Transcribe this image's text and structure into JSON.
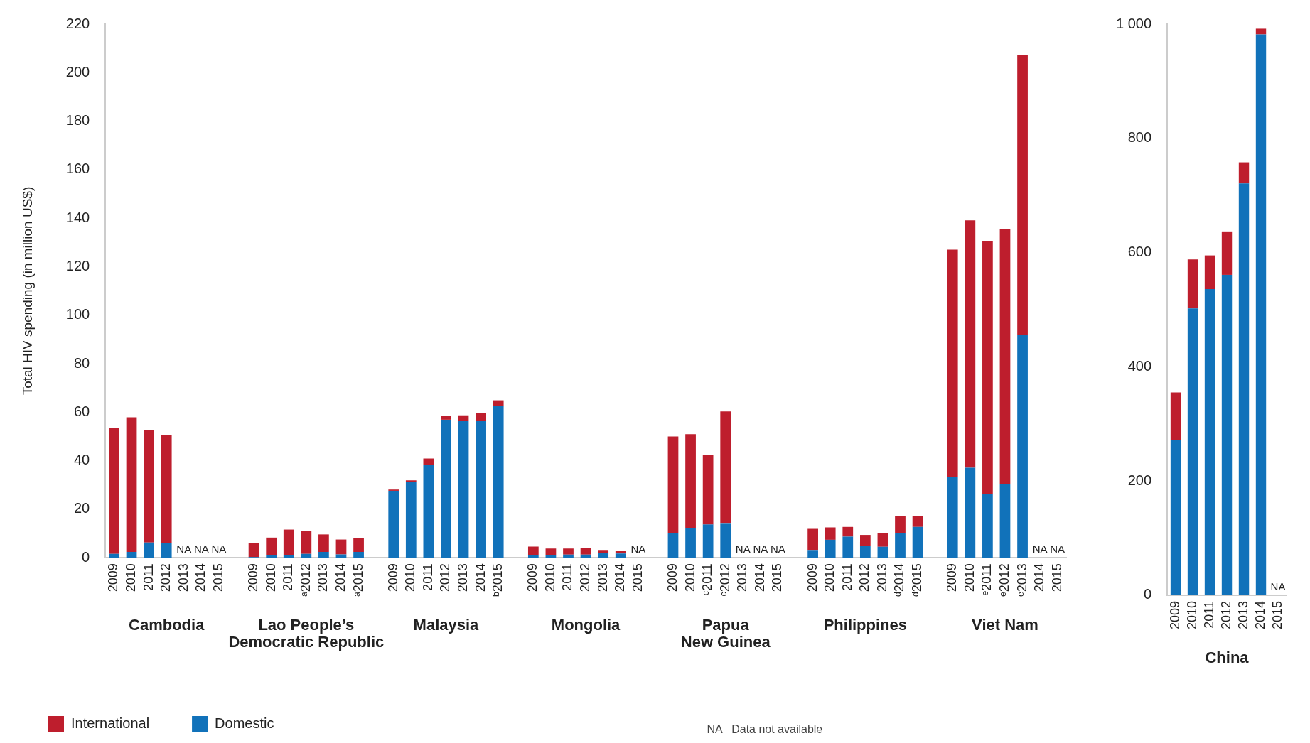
{
  "chart_data": [
    {
      "type": "bar",
      "ylabel": "Total HIV spending (in million US$)",
      "stacked": true,
      "grid": false,
      "legend": "bottom left",
      "categories": [
        "2009",
        "2010",
        "2011",
        "2012",
        "2013",
        "2014",
        "2015",
        null,
        "2009",
        "2010",
        "2011",
        "ᵃ2012",
        "2013",
        "2014",
        "ᵃ2015",
        null,
        "2009",
        "2010",
        "2011",
        "2012",
        "2013",
        "2014",
        "ᵇ2015",
        null,
        "2009",
        "2010",
        "2011",
        "2012",
        "2013",
        "2014",
        "2015",
        null,
        "2009",
        "2010",
        "ᶜ2011",
        "ᶜ2012",
        "2013",
        "2014",
        "2015",
        null,
        "2009",
        "2010",
        "2011",
        "2012",
        "2013",
        "ᵈ2014",
        "ᵈ2015",
        null,
        "2009",
        "2010",
        "ᵉ2011",
        "ᵉ2012",
        "ᵉ2013",
        "2014",
        "2015"
      ],
      "ylim": [
        0,
        220
      ],
      "yticks": [
        0,
        20,
        40,
        60,
        80,
        100,
        120,
        140,
        160,
        180,
        200,
        220
      ],
      "series": [
        {
          "name": "Domestic",
          "color": "#1172ba",
          "values": [
            1.6,
            2.4,
            6.3,
            5.9,
            null,
            null,
            null,
            null,
            0.3,
            0.9,
            0.9,
            1.6,
            2.4,
            1.4,
            2.4,
            null,
            27.6,
            31.3,
            38.3,
            56.9,
            56.5,
            56.5,
            62.4,
            null,
            1.2,
            1.2,
            1.3,
            1.3,
            1.9,
            1.7,
            null,
            null,
            10.0,
            12.1,
            13.7,
            14.3,
            null,
            null,
            null,
            null,
            3.2,
            7.4,
            8.7,
            4.7,
            4.5,
            10.0,
            12.7,
            null,
            33.2,
            37.1,
            26.4,
            30.4,
            92.0,
            null,
            null
          ],
          "value_labels": [
            null,
            null,
            null,
            null,
            "NA",
            "NA",
            "NA",
            null,
            null,
            null,
            null,
            null,
            null,
            null,
            null,
            null,
            null,
            null,
            null,
            null,
            null,
            null,
            null,
            null,
            null,
            null,
            null,
            null,
            null,
            null,
            "NA",
            null,
            null,
            null,
            null,
            null,
            "NA",
            "NA",
            "NA",
            null,
            null,
            null,
            null,
            null,
            null,
            null,
            null,
            null,
            null,
            null,
            null,
            null,
            null,
            "NA",
            "NA"
          ]
        },
        {
          "name": "International",
          "color": "#be1e2d",
          "values": [
            52.0,
            55.5,
            46.2,
            44.7,
            null,
            null,
            null,
            null,
            5.6,
            7.4,
            10.7,
            9.4,
            7.2,
            6.1,
            5.6,
            null,
            0.5,
            0.6,
            2.6,
            1.5,
            2.2,
            3.0,
            2.5,
            null,
            3.4,
            2.6,
            2.5,
            2.8,
            1.3,
            1.0,
            null,
            null,
            40.0,
            38.8,
            28.6,
            46.0,
            null,
            null,
            null,
            null,
            8.7,
            5.1,
            4.0,
            4.7,
            5.7,
            7.2,
            4.5,
            null,
            93.8,
            102.0,
            104.3,
            105.2,
            115.2,
            null,
            null
          ]
        }
      ],
      "annotations": [
        "Cambodia",
        "Lao People’s\nDemocratic Republic",
        "Malaysia",
        "Mongolia",
        "Papua\nNew Guinea",
        "Philippines",
        "Viet Nam",
        "NA   Data not available"
      ]
    },
    {
      "type": "bar",
      "stacked": true,
      "grid": false,
      "categories": [
        "2009",
        "2010",
        "2011",
        "2012",
        "2013",
        "2014",
        "2015"
      ],
      "ylim": [
        0,
        1000
      ],
      "yticks": [
        0,
        200,
        400,
        600,
        800,
        {
          "value": 1000,
          "label": "1 000"
        }
      ],
      "series": [
        {
          "color": "#1172ba",
          "values": [
            271,
            502,
            536,
            561,
            721,
            982,
            null
          ],
          "value_labels": [
            null,
            null,
            null,
            null,
            null,
            null,
            "NA"
          ]
        },
        {
          "color": "#be1e2d",
          "values": [
            84,
            86,
            59,
            76,
            37,
            10,
            null
          ]
        }
      ],
      "annotations": [
        "China"
      ]
    }
  ]
}
